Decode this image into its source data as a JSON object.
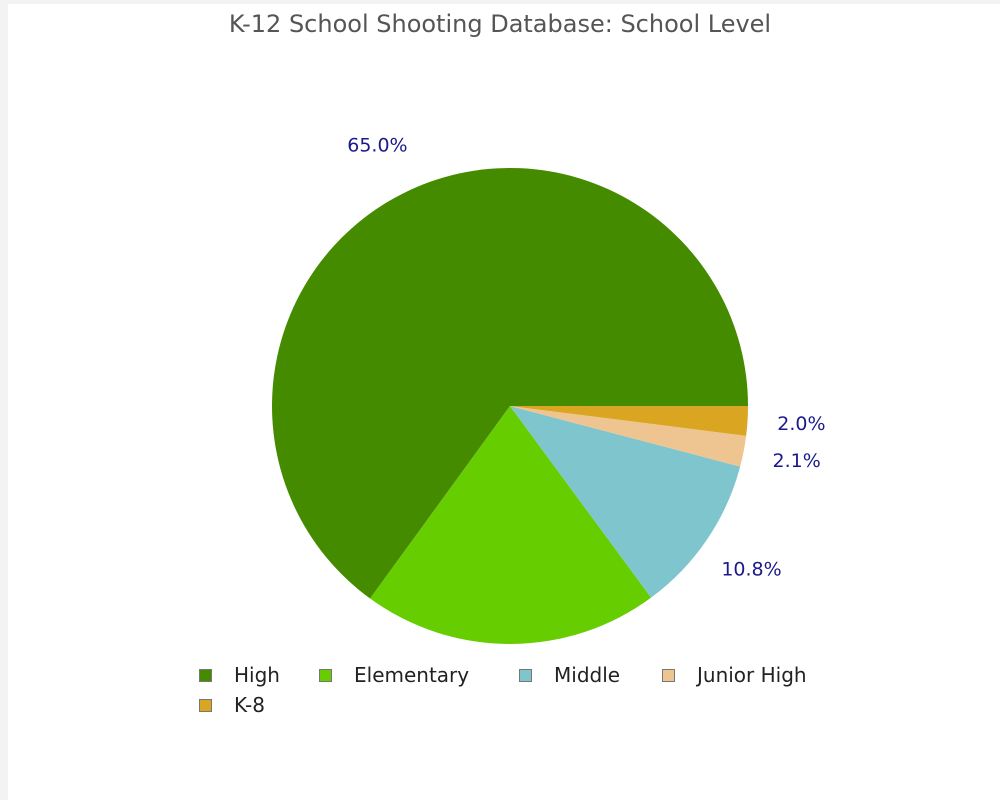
{
  "chart_data": {
    "type": "pie",
    "title": "K-12 School Shooting Database: School Level",
    "series": [
      {
        "name": "High",
        "value": 65.0,
        "label": "65.0%",
        "color": "#458b00"
      },
      {
        "name": "Elementary",
        "value": 20.1,
        "label": "",
        "color": "#66cd00"
      },
      {
        "name": "Middle",
        "value": 10.8,
        "label": "10.8%",
        "color": "#7ec5cd"
      },
      {
        "name": "Junior High",
        "value": 2.1,
        "label": "2.1%",
        "color": "#eec591"
      },
      {
        "name": "K-8",
        "value": 2.0,
        "label": "2.0%",
        "color": "#daa520"
      }
    ],
    "start_angle_deg": 0,
    "direction": "counterclockwise",
    "legend_position": "bottom"
  }
}
